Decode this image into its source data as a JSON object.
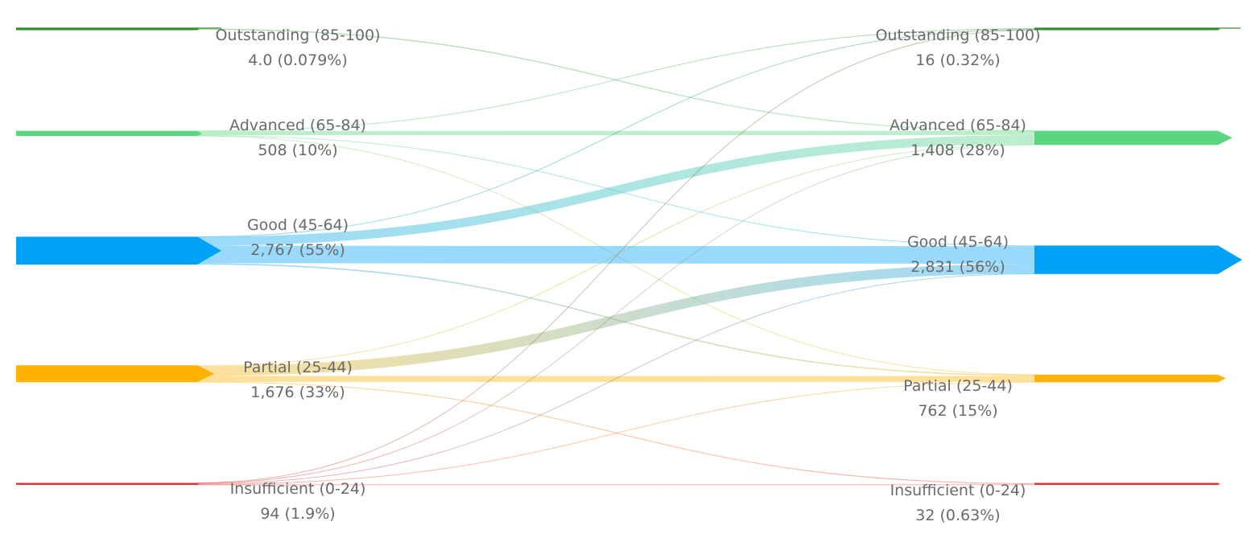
{
  "chart_data": {
    "type": "sankey",
    "colors": {
      "outstanding": "#2e8b2e",
      "advanced": "#5ad67f",
      "good": "#00a2f7",
      "partial": "#fdb300",
      "insufficient": "#ee3231"
    },
    "left_nodes": [
      {
        "id": "outstanding",
        "label": "Outstanding (85-100)",
        "value_text": "4.0 (0.079%)",
        "value": 4
      },
      {
        "id": "advanced",
        "label": "Advanced (65-84)",
        "value_text": "508 (10%)",
        "value": 508
      },
      {
        "id": "good",
        "label": "Good (45-64)",
        "value_text": "2,767 (55%)",
        "value": 2767
      },
      {
        "id": "partial",
        "label": "Partial (25-44)",
        "value_text": "1,676 (33%)",
        "value": 1676
      },
      {
        "id": "insufficient",
        "label": "Insufficient (0-24)",
        "value_text": "94 (1.9%)",
        "value": 94
      }
    ],
    "right_nodes": [
      {
        "id": "outstanding",
        "label": "Outstanding (85-100)",
        "value_text": "16 (0.32%)",
        "value": 16
      },
      {
        "id": "advanced",
        "label": "Advanced (65-84)",
        "value_text": "1,408 (28%)",
        "value": 1408
      },
      {
        "id": "good",
        "label": "Good (45-64)",
        "value_text": "2,831 (56%)",
        "value": 2831
      },
      {
        "id": "partial",
        "label": "Partial (25-44)",
        "value_text": "762 (15%)",
        "value": 762
      },
      {
        "id": "insufficient",
        "label": "Insufficient (0-24)",
        "value_text": "32 (0.63%)",
        "value": 32
      }
    ],
    "links": [
      {
        "source": "outstanding",
        "target": "advanced",
        "value": 4
      },
      {
        "source": "advanced",
        "target": "outstanding",
        "value": 8
      },
      {
        "source": "advanced",
        "target": "advanced",
        "value": 420
      },
      {
        "source": "advanced",
        "target": "good",
        "value": 70
      },
      {
        "source": "advanced",
        "target": "partial",
        "value": 10
      },
      {
        "source": "good",
        "target": "outstanding",
        "value": 5
      },
      {
        "source": "good",
        "target": "advanced",
        "value": 890
      },
      {
        "source": "good",
        "target": "good",
        "value": 1740
      },
      {
        "source": "good",
        "target": "partial",
        "value": 132
      },
      {
        "source": "partial",
        "target": "advanced",
        "value": 85
      },
      {
        "source": "partial",
        "target": "good",
        "value": 976
      },
      {
        "source": "partial",
        "target": "partial",
        "value": 590
      },
      {
        "source": "partial",
        "target": "insufficient",
        "value": 25
      },
      {
        "source": "insufficient",
        "target": "outstanding",
        "value": 3
      },
      {
        "source": "insufficient",
        "target": "advanced",
        "value": 9
      },
      {
        "source": "insufficient",
        "target": "good",
        "value": 45
      },
      {
        "source": "insufficient",
        "target": "partial",
        "value": 30
      },
      {
        "source": "insufficient",
        "target": "insufficient",
        "value": 7
      }
    ]
  }
}
